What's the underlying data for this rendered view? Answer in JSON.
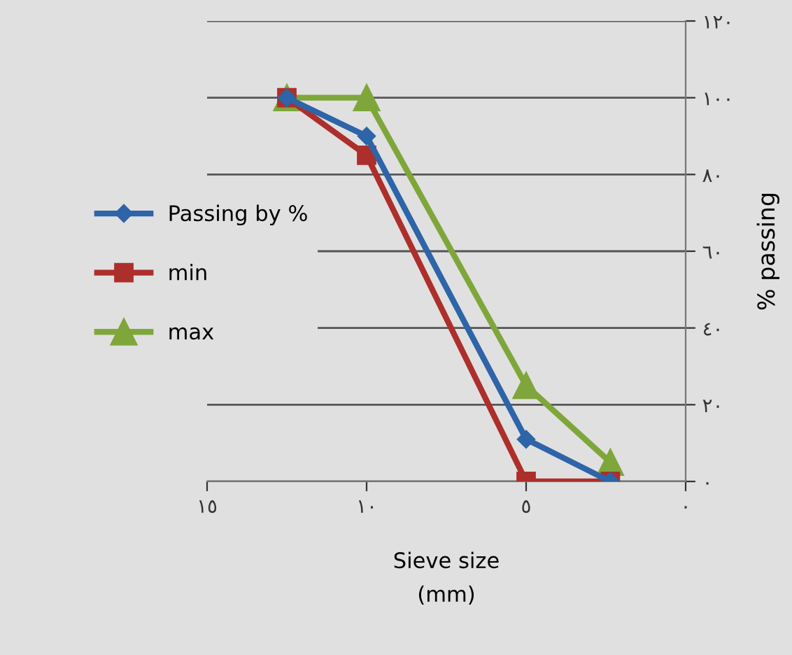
{
  "chart_data": {
    "type": "line",
    "xlabel": "Sieve size\n(mm)",
    "ylabel": "% passing",
    "x": [
      12.5,
      10,
      5,
      2.36
    ],
    "series": [
      {
        "name": "Passing by %",
        "color": "#2e64a8",
        "marker": "diamond",
        "values": [
          100,
          90,
          11,
          0
        ]
      },
      {
        "name": "min",
        "color": "#ad2f2b",
        "marker": "square",
        "values": [
          100,
          85,
          0,
          0
        ]
      },
      {
        "name": "max",
        "color": "#7fa63a",
        "marker": "triangle",
        "values": [
          100,
          100,
          25,
          5
        ]
      }
    ],
    "xlim": [
      15,
      0
    ],
    "xticks": [
      {
        "value": 15,
        "label": "١٥"
      },
      {
        "value": 10,
        "label": "١٠"
      },
      {
        "value": 5,
        "label": "٥"
      },
      {
        "value": 0,
        "label": "٠"
      }
    ],
    "ylim": [
      0,
      120
    ],
    "yticks": [
      {
        "value": 0,
        "label": "٠"
      },
      {
        "value": 20,
        "label": "٢٠"
      },
      {
        "value": 40,
        "label": "٤٠"
      },
      {
        "value": 60,
        "label": "٦٠"
      },
      {
        "value": 80,
        "label": "٨٠"
      },
      {
        "value": 100,
        "label": "١٠٠"
      },
      {
        "value": 120,
        "label": "١٢٠"
      }
    ],
    "grid": "y",
    "legend": "left"
  }
}
